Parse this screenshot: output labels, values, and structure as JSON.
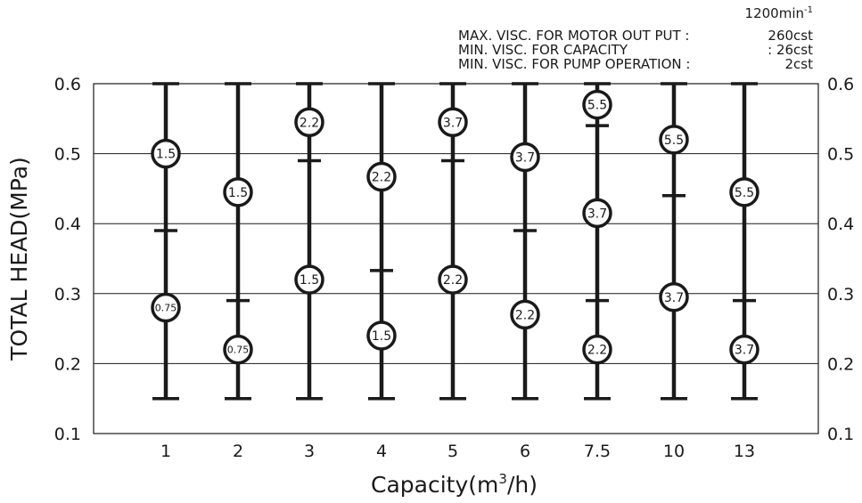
{
  "chart_data": {
    "type": "range",
    "speed_label": {
      "value": "1200min",
      "sup": "-1"
    },
    "notes": [
      {
        "label": "MAX. VISC. FOR MOTOR OUT PUT :",
        "value": "260cst"
      },
      {
        "label": "MIN. VISC. FOR CAPACITY",
        "value": ": 26cst"
      },
      {
        "label": "MIN. VISC. FOR PUMP OPERATION :",
        "value": "2cst"
      }
    ],
    "xlabel": {
      "text": "Capacity(m",
      "sup": "3",
      "tail": "/h)"
    },
    "ylabel": "TOTAL HEAD(MPa)",
    "ylim": [
      0.1,
      0.6
    ],
    "yticks": [
      "0.1",
      "0.2",
      "0.3",
      "0.4",
      "0.5",
      "0.6"
    ],
    "grid": true,
    "categories": [
      "1",
      "2",
      "3",
      "4",
      "5",
      "6",
      "7.5",
      "10",
      "13"
    ],
    "columns": [
      {
        "capacity": "1",
        "min": 0.15,
        "max": 0.6,
        "dividers": [
          0.39
        ],
        "motors": [
          {
            "kw": "1.5",
            "head": 0.5
          },
          {
            "kw": "0.75",
            "head": 0.28
          }
        ]
      },
      {
        "capacity": "2",
        "min": 0.15,
        "max": 0.6,
        "dividers": [
          0.29
        ],
        "motors": [
          {
            "kw": "1.5",
            "head": 0.445
          },
          {
            "kw": "0.75",
            "head": 0.22
          }
        ]
      },
      {
        "capacity": "3",
        "min": 0.15,
        "max": 0.6,
        "dividers": [
          0.49
        ],
        "motors": [
          {
            "kw": "2.2",
            "head": 0.545
          },
          {
            "kw": "1.5",
            "head": 0.32
          }
        ]
      },
      {
        "capacity": "4",
        "min": 0.15,
        "max": 0.6,
        "dividers": [
          0.333
        ],
        "motors": [
          {
            "kw": "2.2",
            "head": 0.467
          },
          {
            "kw": "1.5",
            "head": 0.24
          }
        ]
      },
      {
        "capacity": "5",
        "min": 0.15,
        "max": 0.6,
        "dividers": [
          0.49
        ],
        "motors": [
          {
            "kw": "3.7",
            "head": 0.545
          },
          {
            "kw": "2.2",
            "head": 0.32
          }
        ]
      },
      {
        "capacity": "6",
        "min": 0.15,
        "max": 0.6,
        "dividers": [
          0.39
        ],
        "motors": [
          {
            "kw": "3.7",
            "head": 0.495
          },
          {
            "kw": "2.2",
            "head": 0.27
          }
        ]
      },
      {
        "capacity": "7.5",
        "min": 0.15,
        "max": 0.6,
        "dividers": [
          0.54,
          0.29
        ],
        "motors": [
          {
            "kw": "5.5",
            "head": 0.57
          },
          {
            "kw": "3.7",
            "head": 0.415
          },
          {
            "kw": "2.2",
            "head": 0.22
          }
        ]
      },
      {
        "capacity": "10",
        "min": 0.15,
        "max": 0.6,
        "dividers": [
          0.44
        ],
        "motors": [
          {
            "kw": "5.5",
            "head": 0.52
          },
          {
            "kw": "3.7",
            "head": 0.295
          }
        ]
      },
      {
        "capacity": "13",
        "min": 0.15,
        "max": 0.6,
        "dividers": [
          0.29
        ],
        "motors": [
          {
            "kw": "5.5",
            "head": 0.445
          },
          {
            "kw": "3.7",
            "head": 0.22
          }
        ]
      }
    ]
  }
}
